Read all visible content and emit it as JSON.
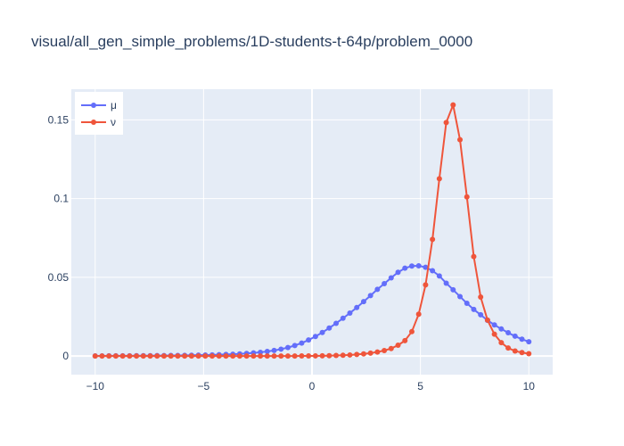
{
  "chart_data": {
    "type": "line",
    "title": "visual/all_gen_simple_problems/1D-students-t-64p/problem_0000",
    "xlabel": "",
    "ylabel": "",
    "xlim": [
      -11.1,
      11.1
    ],
    "ylim": [
      -0.0118,
      0.1695
    ],
    "x_ticks": [
      -10,
      -5,
      0,
      5,
      10
    ],
    "x_tick_labels": [
      "−10",
      "−5",
      "0",
      "5",
      "10"
    ],
    "y_ticks": [
      0,
      0.05,
      0.1,
      0.15
    ],
    "y_tick_labels": [
      "0",
      "0.05",
      "0.1",
      "0.15"
    ],
    "grid": true,
    "legend_position": "top-left",
    "x": [
      -10,
      -9.6825,
      -9.3651,
      -9.0476,
      -8.7302,
      -8.4127,
      -8.0952,
      -7.7778,
      -7.4603,
      -7.1429,
      -6.8254,
      -6.5079,
      -6.1905,
      -5.873,
      -5.5556,
      -5.2381,
      -4.9206,
      -4.6032,
      -4.2857,
      -3.9683,
      -3.6508,
      -3.3333,
      -3.0159,
      -2.6984,
      -2.381,
      -2.0635,
      -1.746,
      -1.4286,
      -1.1111,
      -0.7937,
      -0.4762,
      -0.1587,
      0.1587,
      0.4762,
      0.7937,
      1.1111,
      1.4286,
      1.746,
      2.0635,
      2.381,
      2.6984,
      3.0159,
      3.3333,
      3.6508,
      3.9683,
      4.2857,
      4.6032,
      4.9206,
      5.2381,
      5.5556,
      5.873,
      6.1905,
      6.5079,
      6.8254,
      7.1429,
      7.4603,
      7.7778,
      8.0952,
      8.4127,
      8.7302,
      9.0476,
      9.3651,
      9.6825,
      10
    ],
    "series": [
      {
        "name": "μ",
        "color": "#636efa",
        "values": [
          0.00012,
          0.00013,
          0.00014,
          0.00016,
          0.00017,
          0.00019,
          0.00021,
          0.00023,
          0.00025,
          0.00028,
          0.00031,
          0.00035,
          0.00039,
          0.00044,
          0.0005,
          0.00057,
          0.00065,
          0.00075,
          0.00087,
          0.00101,
          0.00119,
          0.0014,
          0.00166,
          0.00199,
          0.0024,
          0.00291,
          0.00356,
          0.00438,
          0.00541,
          0.00669,
          0.00827,
          0.0102,
          0.0124,
          0.015,
          0.0178,
          0.0208,
          0.024,
          0.0273,
          0.0308,
          0.0346,
          0.0384,
          0.0424,
          0.046,
          0.0497,
          0.0532,
          0.0558,
          0.0572,
          0.0573,
          0.0564,
          0.0542,
          0.0509,
          0.0463,
          0.0421,
          0.0378,
          0.0335,
          0.0296,
          0.0262,
          0.0227,
          0.0198,
          0.0172,
          0.0148,
          0.0126,
          0.0107,
          0.0091
        ]
      },
      {
        "name": "ν",
        "color": "#ef553b",
        "values": [
          0,
          0,
          0,
          0,
          0,
          0,
          0,
          0,
          0,
          0,
          0,
          0,
          0,
          0,
          0,
          0,
          0,
          0,
          0,
          0,
          0,
          0,
          0,
          0,
          1e-05,
          1e-05,
          2e-05,
          3e-05,
          4e-05,
          5e-05,
          7e-05,
          0.0001,
          0.00013,
          0.00018,
          0.00025,
          0.00035,
          0.00049,
          0.0007,
          0.001,
          0.0014,
          0.0019,
          0.0026,
          0.0035,
          0.0048,
          0.0069,
          0.0098,
          0.0155,
          0.0266,
          0.0452,
          0.0741,
          0.1126,
          0.1483,
          0.1595,
          0.1374,
          0.1011,
          0.0632,
          0.0375,
          0.0228,
          0.0139,
          0.0085,
          0.0051,
          0.0032,
          0.0022,
          0.0015
        ]
      }
    ]
  }
}
